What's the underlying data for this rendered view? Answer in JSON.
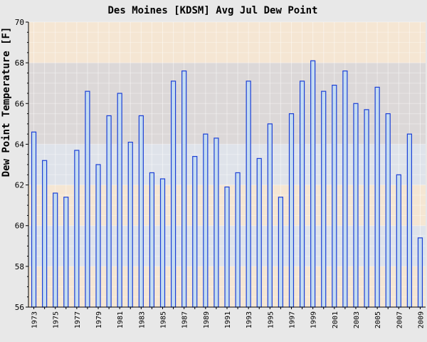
{
  "chart_data": {
    "type": "bar",
    "title": "Des Moines [KDSM] Avg Jul Dew Point",
    "xlabel": "",
    "ylabel": "Dew Point Temperature [F]",
    "ylim": [
      56,
      70
    ],
    "yticks": [
      "56",
      "58",
      "60",
      "62",
      "64",
      "66",
      "68",
      "70"
    ],
    "grid": true,
    "categories": [
      "1973",
      "1974",
      "1975",
      "1976",
      "1977",
      "1978",
      "1979",
      "1980",
      "1981",
      "1982",
      "1983",
      "1984",
      "1985",
      "1986",
      "1987",
      "1988",
      "1989",
      "1990",
      "1991",
      "1992",
      "1993",
      "1994",
      "1995",
      "1996",
      "1997",
      "1998",
      "1999",
      "2000",
      "2001",
      "2002",
      "2003",
      "2004",
      "2005",
      "2006",
      "2007",
      "2008",
      "2009"
    ],
    "xtick_labels": [
      "1973",
      "1975",
      "1977",
      "1979",
      "1981",
      "1983",
      "1985",
      "1987",
      "1989",
      "1991",
      "1993",
      "1995",
      "1997",
      "1999",
      "2001",
      "2003",
      "2005",
      "2007",
      "2009"
    ],
    "values": [
      64.6,
      63.2,
      61.6,
      61.4,
      63.7,
      66.6,
      63.0,
      65.4,
      66.5,
      64.1,
      65.4,
      62.6,
      62.3,
      67.1,
      67.6,
      63.4,
      64.5,
      64.3,
      61.9,
      62.6,
      67.1,
      63.3,
      65.0,
      61.4,
      65.5,
      67.1,
      68.1,
      66.6,
      66.9,
      67.6,
      66.0,
      65.7,
      66.8,
      65.5,
      62.5,
      64.5,
      59.4
    ],
    "colors": {
      "background": "#e8e8e8",
      "band_light": "#f5e6d3",
      "band_dark": "#dcd8d8",
      "band_blue": "#dfe3ea",
      "bar_fill": "#c6ddf0",
      "bar_stroke": "#1b3fd6",
      "axis": "#000000"
    }
  }
}
